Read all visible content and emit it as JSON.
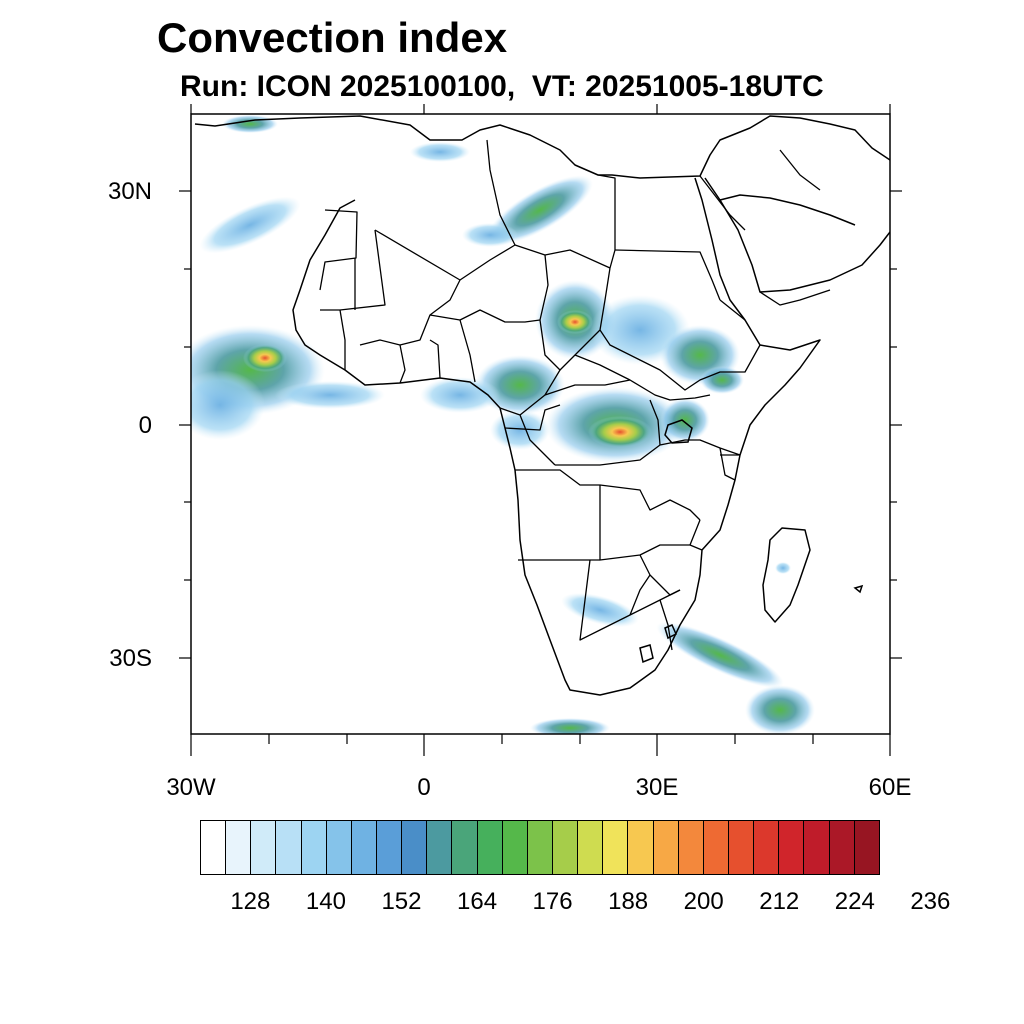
{
  "title": "Convection index",
  "subtitle": "Run: ICON 2025100100,  VT: 20251005-18UTC",
  "axes": {
    "lat_labels": [
      "30N",
      "0",
      "30S"
    ],
    "lon_labels": [
      "30W",
      "0",
      "30E",
      "60E"
    ]
  },
  "colorbar": {
    "colors": [
      "#ffffff",
      "#e8f4fc",
      "#d0ebf9",
      "#b8e0f6",
      "#9dd4f2",
      "#85c3ea",
      "#6fb2e3",
      "#5a9ed8",
      "#4a8ec8",
      "#4c9aa0",
      "#4aa57a",
      "#46b05c",
      "#55b84a",
      "#7cc24a",
      "#a6cd4a",
      "#cfdc50",
      "#f0e35a",
      "#f7c850",
      "#f7a845",
      "#f3883c",
      "#ee6a33",
      "#e6502e",
      "#dc382c",
      "#d0252b",
      "#bf1c2a",
      "#ab1827",
      "#971522"
    ],
    "tick_labels": [
      "128",
      "140",
      "152",
      "164",
      "176",
      "188",
      "200",
      "212",
      "224",
      "236"
    ]
  }
}
